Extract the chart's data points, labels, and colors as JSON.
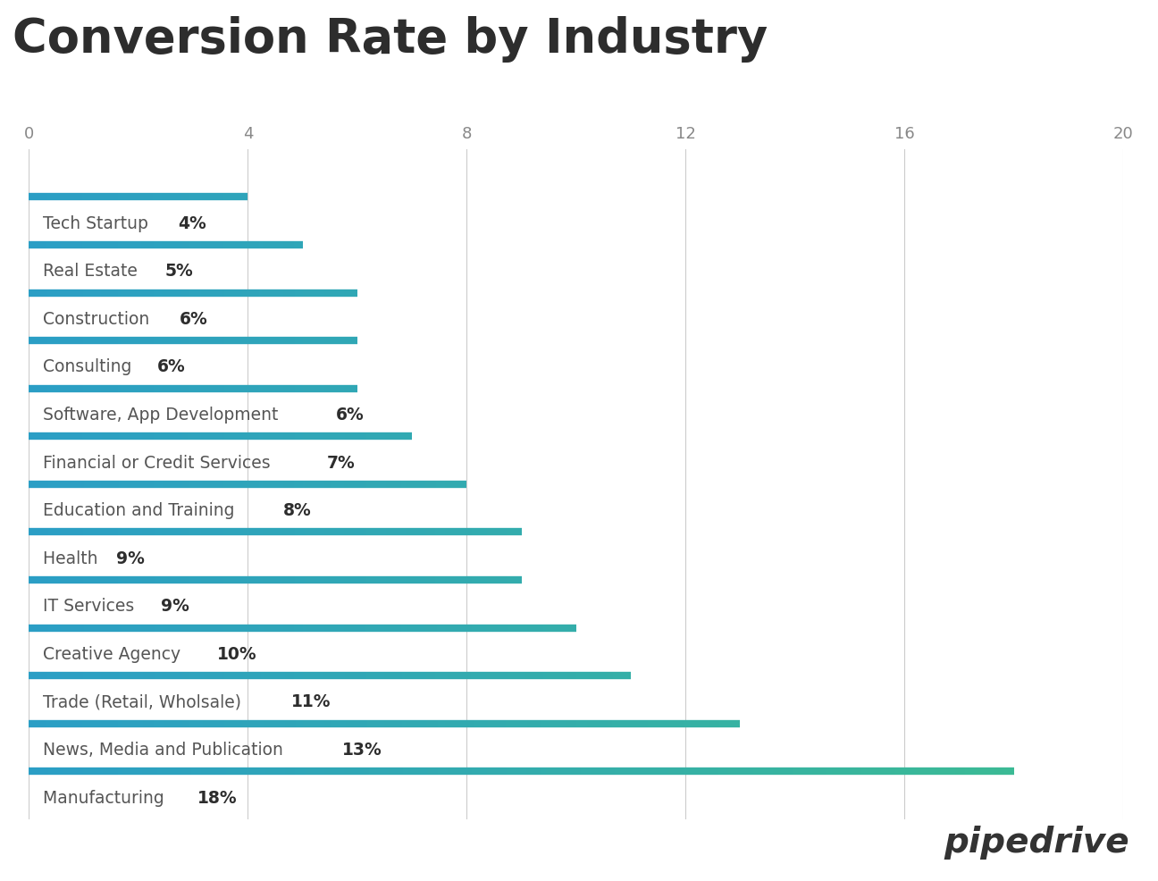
{
  "title": "Conversion Rate by Industry",
  "categories": [
    "Tech Startup",
    "Real Estate",
    "Construction",
    "Consulting",
    "Software, App Development",
    "Financial or Credit Services",
    "Education and Training",
    "Health",
    "IT Services",
    "Creative Agency",
    "Trade (Retail, Wholsale)",
    "News, Media and Publication",
    "Manufacturing"
  ],
  "values": [
    4,
    5,
    6,
    6,
    6,
    7,
    8,
    9,
    9,
    10,
    11,
    13,
    18
  ],
  "xlim": [
    0,
    20
  ],
  "xticks": [
    0,
    4,
    8,
    12,
    16,
    20
  ],
  "bar_color_start": "#2B9EC5",
  "bar_color_end": "#3DBD8F",
  "bar_linewidth": 6,
  "title_fontsize": 38,
  "title_color": "#2d2d2d",
  "label_fontsize": 13.5,
  "label_color": "#555555",
  "label_bold_color": "#2d2d2d",
  "tick_fontsize": 13,
  "tick_color": "#888888",
  "grid_color": "#cccccc",
  "background_color": "#ffffff",
  "pipedrive_text": "pipedrive",
  "pipedrive_color": "#333333",
  "pipedrive_fontsize": 28
}
